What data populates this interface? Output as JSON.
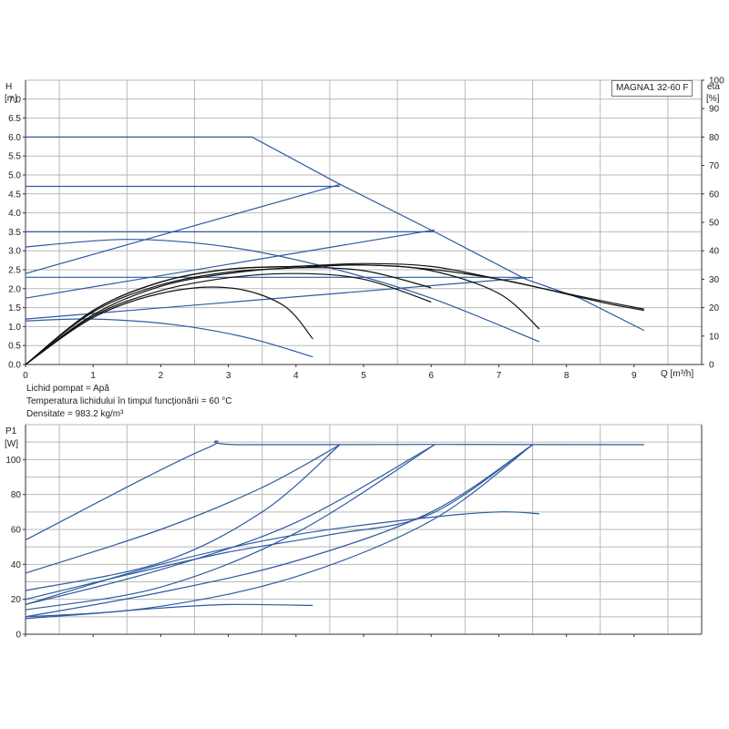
{
  "pump_model": "MAGNA1 32-60 F",
  "info": {
    "liquid": "Lichid pompat = Apă",
    "temperature": "Temperatura lichidului în timpul funcţionării = 60 °C",
    "density": "Densitate = 983.2 kg/m³"
  },
  "chart_data": [
    {
      "type": "line",
      "ylabel_name": "H",
      "ylabel_unit": "[m]",
      "y2label_name": "eta",
      "y2label_unit": "[%]",
      "xlabel": "Q [m³/h]",
      "xlim": [
        0,
        10
      ],
      "ylim": [
        0,
        7.5
      ],
      "y2lim": [
        0,
        100
      ],
      "x_ticks": [
        "0",
        "1",
        "2",
        "3",
        "4",
        "5",
        "6",
        "7",
        "8",
        "9"
      ],
      "y_ticks": [
        "0.0",
        "0.5",
        "1.0",
        "1.5",
        "2.0",
        "2.5",
        "3.0",
        "3.5",
        "4.0",
        "4.5",
        "5.0",
        "5.5",
        "6.0",
        "6.5",
        "7.0"
      ],
      "y2_ticks": [
        "0",
        "10",
        "20",
        "30",
        "40",
        "50",
        "60",
        "70",
        "80",
        "90",
        "100"
      ],
      "grid": true,
      "head_series": [
        {
          "points": [
            [
              0,
              6.0
            ],
            [
              3.35,
              6.0
            ],
            [
              4.6,
              4.8
            ],
            [
              6.05,
              3.5
            ],
            [
              7.4,
              2.25
            ],
            [
              8.2,
              1.75
            ],
            [
              9.15,
              0.9
            ]
          ]
        },
        {
          "points": [
            [
              0,
              4.7
            ],
            [
              4.65,
              4.7
            ]
          ]
        },
        {
          "points": [
            [
              0,
              3.5
            ],
            [
              6.05,
              3.5
            ]
          ]
        },
        {
          "points": [
            [
              0,
              2.3
            ],
            [
              7.4,
              2.3
            ]
          ]
        },
        {
          "points": [
            [
              0,
              2.4
            ],
            [
              4.65,
              4.75
            ]
          ]
        },
        {
          "points": [
            [
              0,
              1.75
            ],
            [
              6.05,
              3.55
            ]
          ]
        },
        {
          "points": [
            [
              0,
              1.2
            ],
            [
              7.5,
              2.3
            ]
          ]
        },
        {
          "points": [
            [
              0,
              3.1
            ],
            [
              1.5,
              3.3
            ],
            [
              3.0,
              3.1
            ],
            [
              4.5,
              2.55
            ],
            [
              6.0,
              1.75
            ],
            [
              7.6,
              0.6
            ]
          ]
        },
        {
          "points": [
            [
              0,
              1.15
            ],
            [
              1.0,
              1.2
            ],
            [
              2.2,
              1.05
            ],
            [
              3.3,
              0.7
            ],
            [
              4.25,
              0.2
            ]
          ]
        }
      ],
      "efficiency_series": [
        {
          "points": [
            [
              0,
              0
            ],
            [
              1.0,
              19
            ],
            [
              2.0,
              29
            ],
            [
              3.0,
              33.5
            ],
            [
              4.0,
              34.5
            ],
            [
              5.0,
              35.5
            ],
            [
              6.0,
              34.5
            ],
            [
              7.0,
              30
            ],
            [
              7.6,
              27
            ],
            [
              8.5,
              22.5
            ],
            [
              9.15,
              19.5
            ]
          ]
        },
        {
          "points": [
            [
              0,
              0
            ],
            [
              1.0,
              19
            ],
            [
              2.0,
              29
            ],
            [
              3.0,
              33.5
            ],
            [
              4.0,
              34.5
            ],
            [
              5.0,
              35
            ],
            [
              6.0,
              33.5
            ],
            [
              7.0,
              30
            ],
            [
              7.6,
              27
            ],
            [
              8.5,
              22
            ],
            [
              9.15,
              19
            ]
          ]
        },
        {
          "points": [
            [
              0,
              0
            ],
            [
              1.0,
              18.5
            ],
            [
              2.0,
              28
            ],
            [
              3.0,
              32.5
            ],
            [
              4.0,
              34
            ],
            [
              5.0,
              35
            ],
            [
              6.0,
              33
            ],
            [
              7.0,
              25
            ],
            [
              7.6,
              12.5
            ]
          ]
        },
        {
          "points": [
            [
              0,
              0
            ],
            [
              1.0,
              17.5
            ],
            [
              2.0,
              27.5
            ],
            [
              3.0,
              32
            ],
            [
              4.0,
              34
            ],
            [
              5.0,
              33
            ],
            [
              6.0,
              27
            ]
          ]
        },
        {
          "points": [
            [
              0,
              0
            ],
            [
              1.0,
              17
            ],
            [
              2.0,
              26
            ],
            [
              3.0,
              30.5
            ],
            [
              4.0,
              32
            ],
            [
              5.0,
              30
            ],
            [
              6.0,
              22
            ]
          ]
        },
        {
          "points": [
            [
              0,
              0
            ],
            [
              1.0,
              16.5
            ],
            [
              2.0,
              25
            ],
            [
              3.0,
              27
            ],
            [
              3.8,
              21
            ],
            [
              4.25,
              9
            ]
          ]
        }
      ]
    },
    {
      "type": "line",
      "ylabel_name": "P1",
      "ylabel_unit": "[W]",
      "xlim": [
        0,
        10
      ],
      "ylim": [
        0,
        120
      ],
      "y_ticks": [
        "0",
        "20",
        "40",
        "60",
        "80",
        "100"
      ],
      "grid": true,
      "series": [
        {
          "points": [
            [
              0,
              54
            ],
            [
              2.65,
              106
            ],
            [
              3.35,
              108.5
            ],
            [
              9.15,
              108.5
            ]
          ]
        },
        {
          "points": [
            [
              0,
              35
            ],
            [
              2.0,
              60
            ],
            [
              3.5,
              84
            ],
            [
              4.65,
              108.5
            ]
          ]
        },
        {
          "points": [
            [
              0,
              25
            ],
            [
              2.0,
              41
            ],
            [
              3.5,
              70
            ],
            [
              4.65,
              108.5
            ]
          ]
        },
        {
          "points": [
            [
              0,
              17
            ],
            [
              2.0,
              37
            ],
            [
              4.0,
              64
            ],
            [
              6.05,
              108.5
            ]
          ]
        },
        {
          "points": [
            [
              0,
              14
            ],
            [
              2.0,
              27
            ],
            [
              4.0,
              58
            ],
            [
              6.05,
              108.5
            ]
          ]
        },
        {
          "points": [
            [
              0,
              10
            ],
            [
              2.0,
              24
            ],
            [
              4.0,
              42
            ],
            [
              6.0,
              70
            ],
            [
              7.5,
              108.5
            ]
          ]
        },
        {
          "points": [
            [
              0,
              9
            ],
            [
              2.0,
              16
            ],
            [
              4.0,
              33
            ],
            [
              6.0,
              65
            ],
            [
              7.5,
              108.5
            ]
          ]
        },
        {
          "points": [
            [
              0,
              17
            ],
            [
              2.0,
              40
            ],
            [
              4.0,
              57
            ],
            [
              6.0,
              67
            ],
            [
              7.0,
              70
            ],
            [
              7.6,
              69
            ]
          ]
        },
        {
          "points": [
            [
              0,
              10
            ],
            [
              1.0,
              12
            ],
            [
              2.0,
              15
            ],
            [
              3.0,
              17
            ],
            [
              4.25,
              16.5
            ]
          ]
        },
        {
          "points": [
            [
              0,
              20
            ],
            [
              1.5,
              34
            ],
            [
              3.0,
              47
            ],
            [
              4.5,
              57
            ],
            [
              6.0,
              69
            ],
            [
              7.5,
              108.5
            ]
          ]
        }
      ]
    }
  ],
  "colors": {
    "head_curves": "#2c5aa0",
    "efficiency_curves": "#111111",
    "power_curves": "#2c5aa0",
    "grid": "#b9b9b9"
  }
}
